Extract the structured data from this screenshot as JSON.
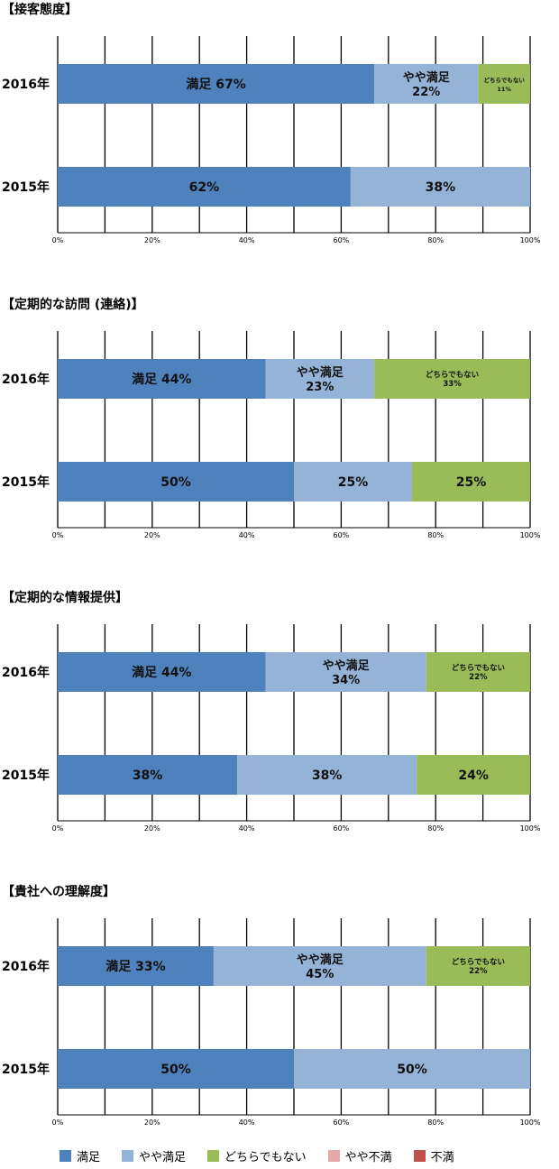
{
  "legend": [
    {
      "label": "満足",
      "color": "#4f81bd"
    },
    {
      "label": "やや満足",
      "color": "#95b3d7"
    },
    {
      "label": "どちらでもない",
      "color": "#9bbb59"
    },
    {
      "label": "やや不満",
      "color": "#e6a9ab"
    },
    {
      "label": "不満",
      "color": "#c0504d"
    }
  ],
  "chart_data": [
    {
      "type": "bar",
      "orientation": "horizontal",
      "stacked": "percent",
      "title": "【接客態度】",
      "categories": [
        "2016年",
        "2015年"
      ],
      "xlim": [
        0,
        100
      ],
      "x_ticks": [
        "0%",
        "20%",
        "40%",
        "60%",
        "80%",
        "100%"
      ],
      "grid": true,
      "series": [
        {
          "name": "満足",
          "values": [
            67,
            62
          ],
          "labels": [
            "満足 67%",
            "62%"
          ]
        },
        {
          "name": "やや満足",
          "values": [
            22,
            38
          ],
          "labels": [
            "やや満足|22%",
            "38%"
          ]
        },
        {
          "name": "どちらでもない",
          "values": [
            11,
            0
          ],
          "labels": [
            "どちらでもない|11%",
            ""
          ]
        },
        {
          "name": "やや不満",
          "values": [
            0,
            0
          ],
          "labels": [
            "",
            ""
          ]
        },
        {
          "name": "不満",
          "values": [
            0,
            0
          ],
          "labels": [
            "",
            ""
          ]
        }
      ]
    },
    {
      "type": "bar",
      "orientation": "horizontal",
      "stacked": "percent",
      "title": "【定期的な訪問 (連絡)】",
      "categories": [
        "2016年",
        "2015年"
      ],
      "xlim": [
        0,
        100
      ],
      "x_ticks": [
        "0%",
        "20%",
        "40%",
        "60%",
        "80%",
        "100%"
      ],
      "grid": true,
      "series": [
        {
          "name": "満足",
          "values": [
            44,
            50
          ],
          "labels": [
            "満足 44%",
            "50%"
          ]
        },
        {
          "name": "やや満足",
          "values": [
            23,
            25
          ],
          "labels": [
            "やや満足|23%",
            "25%"
          ]
        },
        {
          "name": "どちらでもない",
          "values": [
            33,
            25
          ],
          "labels": [
            "どちらでもない|33%",
            "25%"
          ]
        },
        {
          "name": "やや不満",
          "values": [
            0,
            0
          ],
          "labels": [
            "",
            ""
          ]
        },
        {
          "name": "不満",
          "values": [
            0,
            0
          ],
          "labels": [
            "",
            ""
          ]
        }
      ]
    },
    {
      "type": "bar",
      "orientation": "horizontal",
      "stacked": "percent",
      "title": "【定期的な情報提供】",
      "categories": [
        "2016年",
        "2015年"
      ],
      "xlim": [
        0,
        100
      ],
      "x_ticks": [
        "0%",
        "20%",
        "40%",
        "60%",
        "80%",
        "100%"
      ],
      "grid": true,
      "series": [
        {
          "name": "満足",
          "values": [
            44,
            38
          ],
          "labels": [
            "満足 44%",
            "38%"
          ]
        },
        {
          "name": "やや満足",
          "values": [
            34,
            38
          ],
          "labels": [
            "やや満足|34%",
            "38%"
          ]
        },
        {
          "name": "どちらでもない",
          "values": [
            22,
            24
          ],
          "labels": [
            "どちらでもない|22%",
            "24%"
          ]
        },
        {
          "name": "やや不満",
          "values": [
            0,
            0
          ],
          "labels": [
            "",
            ""
          ]
        },
        {
          "name": "不満",
          "values": [
            0,
            0
          ],
          "labels": [
            "",
            ""
          ]
        }
      ]
    },
    {
      "type": "bar",
      "orientation": "horizontal",
      "stacked": "percent",
      "title": "【貴社への理解度】",
      "categories": [
        "2016年",
        "2015年"
      ],
      "xlim": [
        0,
        100
      ],
      "x_ticks": [
        "0%",
        "20%",
        "40%",
        "60%",
        "80%",
        "100%"
      ],
      "grid": true,
      "series": [
        {
          "name": "満足",
          "values": [
            33,
            50
          ],
          "labels": [
            "満足 33%",
            "50%"
          ]
        },
        {
          "name": "やや満足",
          "values": [
            45,
            50
          ],
          "labels": [
            "やや満足|45%",
            "50%"
          ]
        },
        {
          "name": "どちらでもない",
          "values": [
            22,
            0
          ],
          "labels": [
            "どちらでもない|22%",
            ""
          ]
        },
        {
          "name": "やや不満",
          "values": [
            0,
            0
          ],
          "labels": [
            "",
            ""
          ]
        },
        {
          "name": "不満",
          "values": [
            0,
            0
          ],
          "labels": [
            "",
            ""
          ]
        }
      ]
    }
  ]
}
